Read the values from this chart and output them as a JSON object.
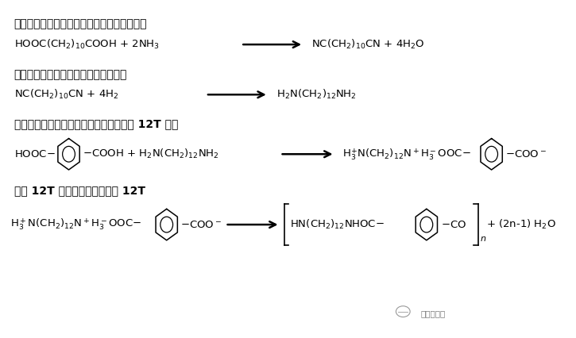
{
  "bg_color": "#ffffff",
  "fig_width": 7.25,
  "fig_height": 4.26,
  "dpi": 100,
  "font_cjk": "Arial Unicode MS",
  "font_fallbacks": [
    "Noto Sans CJK SC",
    "WenQuanYi Micro Hei",
    "SimHei",
    "DejaVu Sans"
  ],
  "heading1": "先用十二碳二元酸经氨化生成十二碳二元腈：",
  "heading2": "十二碳二元腈加氢生成十二碳二元胺：",
  "heading3": "对苯二甲酸和十二碳二元胺中和生成尼龙 12T 盐：",
  "heading4": "尼龙 12T 盐经聚合后生成尼龙 12T",
  "watermark": "艾邦高分子",
  "heading_fs": 10,
  "formula_fs": 9.5
}
